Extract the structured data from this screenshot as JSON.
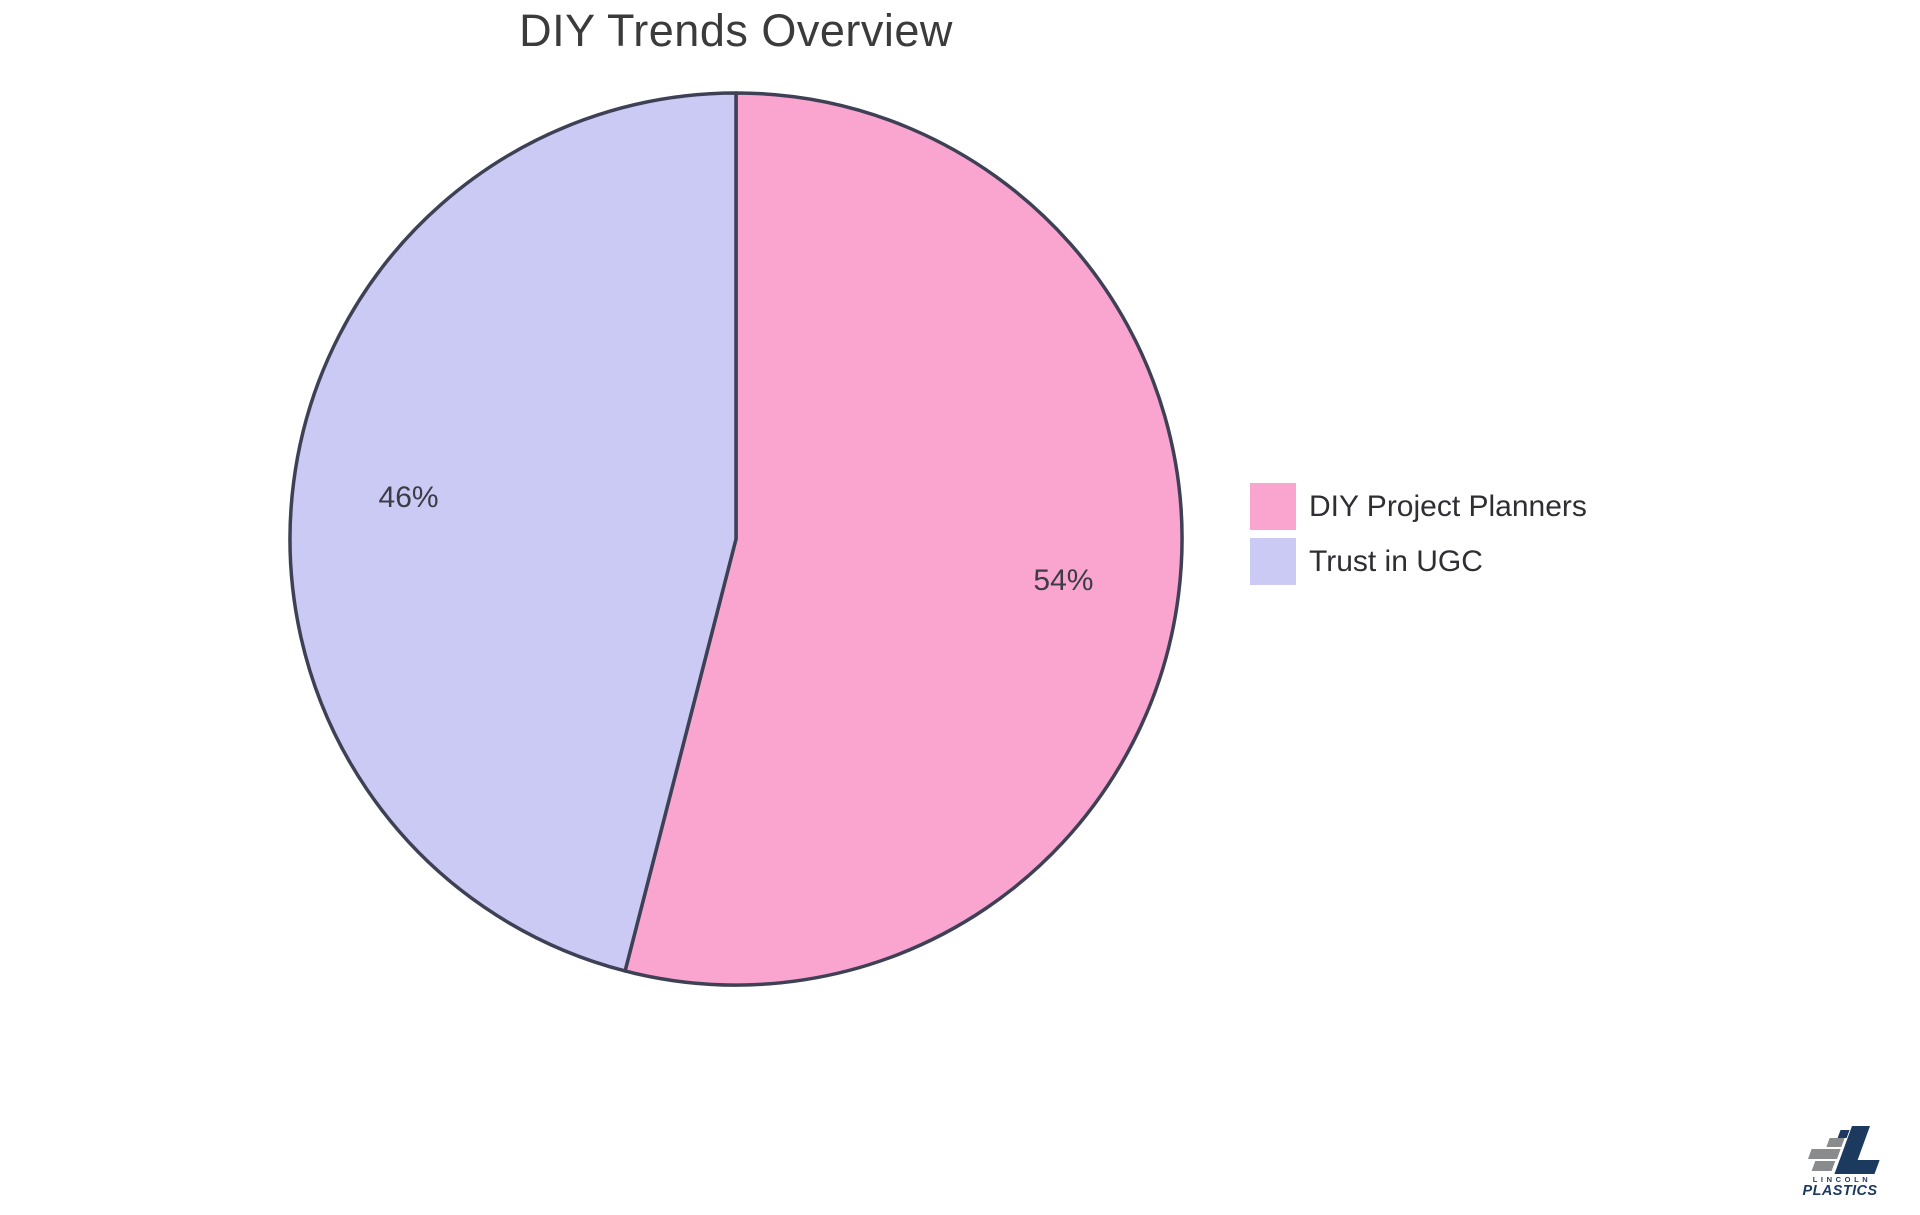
{
  "page": {
    "background": "#ffffff"
  },
  "chart_data": {
    "type": "pie",
    "title": "DIY Trends Overview",
    "labels": [
      "DIY Project Planners",
      "Trust in UGC"
    ],
    "values": [
      54,
      46
    ],
    "value_labels": [
      "54%",
      "46%"
    ],
    "colors": [
      "#FAA5CF",
      "#CACAF5"
    ],
    "slice_border_color": "#3E4156",
    "slice_label_color": "#3C3C45",
    "start_angle_deg": 0,
    "direction": "clockwise",
    "legend_position": "right",
    "title_color": "#3B3B3B"
  },
  "logo": {
    "line1": "LINCOLN",
    "line2": "PLASTICS",
    "navy": "#1C3A5E",
    "gray": "#8A8B8D"
  }
}
